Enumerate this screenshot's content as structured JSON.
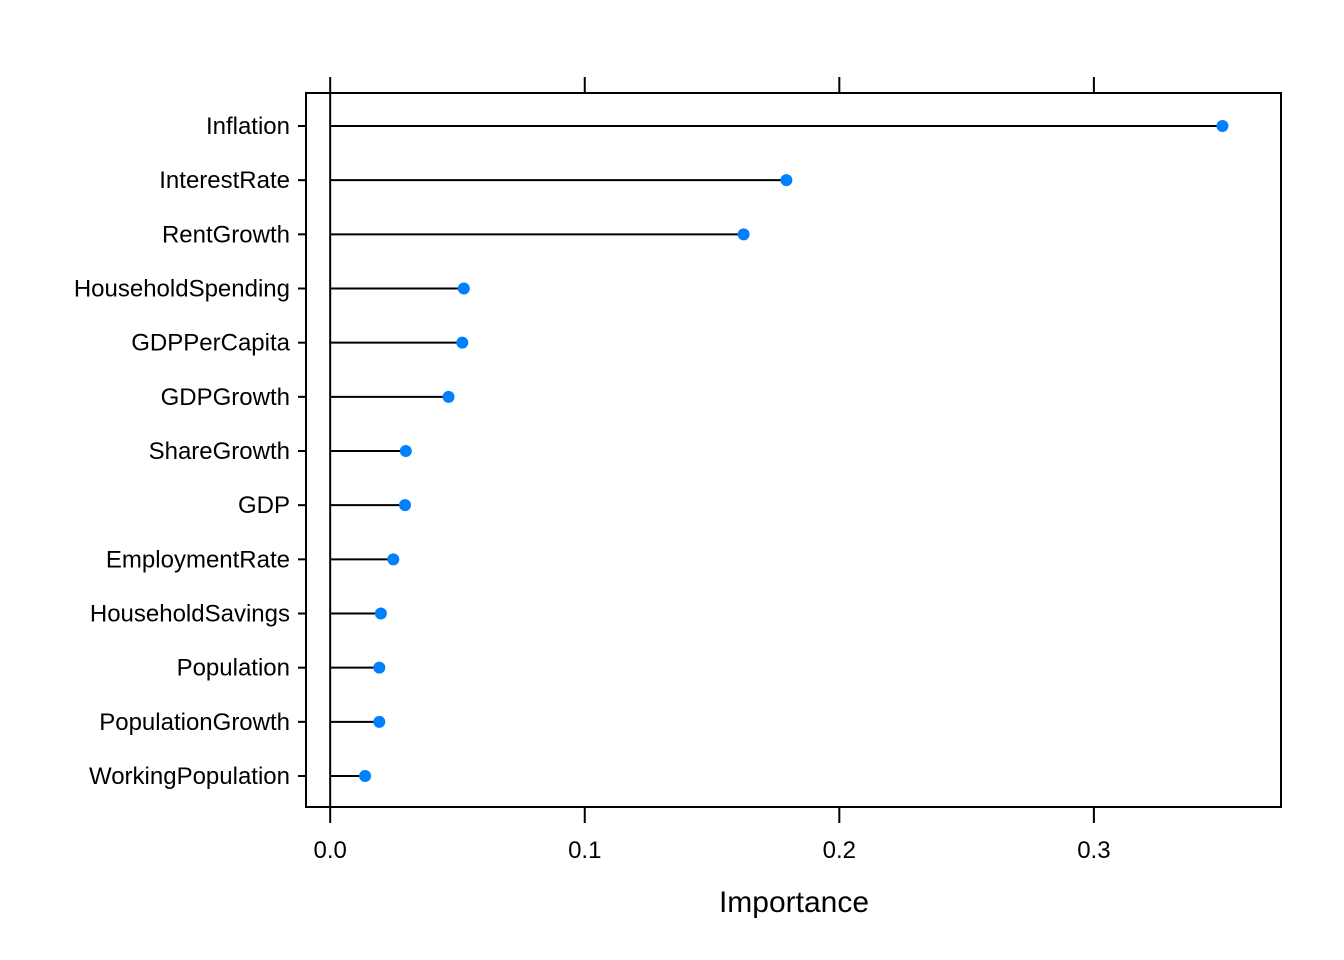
{
  "chart_data": {
    "type": "dotplot",
    "title": "",
    "xlabel": "Importance",
    "ylabel": "",
    "xlim": [
      -0.0095,
      0.3735
    ],
    "xticks": [
      0.0,
      0.1,
      0.2,
      0.3
    ],
    "xtick_labels": [
      "0.0",
      "0.1",
      "0.2",
      "0.3"
    ],
    "categories": [
      "Inflation",
      "InterestRate",
      "RentGrowth",
      "HouseholdSpending",
      "GDPPerCapita",
      "GDPGrowth",
      "ShareGrowth",
      "GDP",
      "EmploymentRate",
      "HouseholdSavings",
      "Population",
      "PopulationGrowth",
      "WorkingPopulation"
    ],
    "values": [
      0.3505,
      0.1792,
      0.1624,
      0.0525,
      0.0519,
      0.0465,
      0.0297,
      0.0294,
      0.0248,
      0.0199,
      0.0193,
      0.0193,
      0.0137
    ],
    "point_color": "#0080ff",
    "line_color": "#000000"
  }
}
